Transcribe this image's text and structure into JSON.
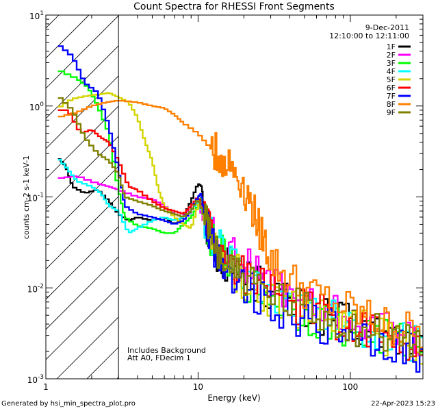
{
  "footer": {
    "left": "Generated by hsi_min_spectra_plot.pro",
    "right": "22-Apr-2023 15:23"
  },
  "chart_data": {
    "type": "line",
    "title": "Count Spectra for RHESSI Front Segments",
    "xlabel": "Energy (keV)",
    "ylabel": "counts cm-2 s-1 keV-1",
    "xscale": "log",
    "yscale": "log",
    "xlim": [
      1,
      300
    ],
    "ylim": [
      0.001,
      10
    ],
    "x_tick_labels": [
      "1",
      "10",
      "100"
    ],
    "y_tick_labels": [
      {
        "base": "10",
        "exp": "-3"
      },
      {
        "base": "10",
        "exp": "-2"
      },
      {
        "base": "10",
        "exp": "-1"
      },
      {
        "base": "10",
        "exp": "0"
      },
      {
        "base": "10",
        "exp": "1"
      }
    ],
    "header_lines": [
      "9-Dec-2011",
      "12:10:00 to 12:11:00"
    ],
    "annotation": [
      "Includes Background",
      "Att A0, FDecim 1"
    ],
    "shaded_region": {
      "x_from": 1,
      "x_to": 3
    },
    "series": [
      {
        "name": "1F",
        "color": "#000000",
        "points": [
          [
            1.2,
            0.27
          ],
          [
            1.35,
            0.22
          ],
          [
            1.5,
            0.13
          ],
          [
            1.8,
            0.11
          ],
          [
            2.2,
            0.12
          ],
          [
            2.6,
            0.09
          ],
          [
            3.0,
            0.065
          ],
          [
            3.5,
            0.055
          ],
          [
            4.0,
            0.06
          ],
          [
            5,
            0.055
          ],
          [
            6,
            0.06
          ],
          [
            7,
            0.05
          ],
          [
            8,
            0.06
          ],
          [
            9,
            0.09
          ],
          [
            10,
            0.14
          ],
          [
            10.6,
            0.13
          ],
          [
            11,
            0.06
          ],
          [
            12,
            0.035
          ],
          [
            13,
            0.025
          ],
          [
            15,
            0.02
          ],
          [
            20,
            0.014
          ],
          [
            30,
            0.009
          ],
          [
            50,
            0.0055
          ],
          [
            80,
            0.0045
          ],
          [
            120,
            0.0035
          ],
          [
            200,
            0.0028
          ],
          [
            300,
            0.0022
          ]
        ]
      },
      {
        "name": "2F",
        "color": "#ff00ff",
        "points": [
          [
            1.2,
            0.16
          ],
          [
            1.6,
            0.17
          ],
          [
            2.2,
            0.14
          ],
          [
            2.6,
            0.13
          ],
          [
            3.0,
            0.12
          ],
          [
            4,
            0.1
          ],
          [
            5,
            0.095
          ],
          [
            6,
            0.08
          ],
          [
            7,
            0.065
          ],
          [
            8,
            0.06
          ],
          [
            9,
            0.08
          ],
          [
            10,
            0.09
          ],
          [
            11,
            0.05
          ],
          [
            12,
            0.04
          ],
          [
            14,
            0.03
          ],
          [
            18,
            0.02
          ],
          [
            25,
            0.014
          ],
          [
            40,
            0.009
          ],
          [
            60,
            0.006
          ],
          [
            100,
            0.0045
          ],
          [
            180,
            0.0033
          ],
          [
            300,
            0.0028
          ]
        ]
      },
      {
        "name": "3F",
        "color": "#00ff00",
        "points": [
          [
            1.2,
            2.5
          ],
          [
            1.6,
            2.0
          ],
          [
            1.9,
            1.6
          ],
          [
            2.2,
            1.0
          ],
          [
            2.6,
            0.5
          ],
          [
            3.0,
            0.12
          ],
          [
            3.3,
            0.06
          ],
          [
            4,
            0.048
          ],
          [
            5,
            0.045
          ],
          [
            6,
            0.04
          ],
          [
            7,
            0.04
          ],
          [
            8,
            0.05
          ],
          [
            9,
            0.06
          ],
          [
            10,
            0.08
          ],
          [
            10.5,
            0.1
          ],
          [
            11,
            0.06
          ],
          [
            12,
            0.04
          ],
          [
            15,
            0.02
          ],
          [
            20,
            0.012
          ],
          [
            30,
            0.008
          ],
          [
            50,
            0.005
          ],
          [
            80,
            0.004
          ],
          [
            120,
            0.0033
          ],
          [
            200,
            0.0026
          ],
          [
            300,
            0.0022
          ]
        ]
      },
      {
        "name": "4F",
        "color": "#00ffff",
        "points": [
          [
            1.2,
            0.27
          ],
          [
            1.4,
            0.2
          ],
          [
            1.6,
            0.15
          ],
          [
            2.0,
            0.13
          ],
          [
            2.3,
            0.11
          ],
          [
            2.6,
            0.08
          ],
          [
            3.0,
            0.07
          ],
          [
            3.5,
            0.04
          ],
          [
            4,
            0.045
          ],
          [
            5,
            0.055
          ],
          [
            6,
            0.06
          ],
          [
            7,
            0.055
          ],
          [
            8,
            0.06
          ],
          [
            9,
            0.07
          ],
          [
            10,
            0.09
          ],
          [
            11,
            0.06
          ],
          [
            12,
            0.04
          ],
          [
            15,
            0.022
          ],
          [
            20,
            0.014
          ],
          [
            30,
            0.009
          ],
          [
            50,
            0.006
          ],
          [
            80,
            0.0045
          ],
          [
            120,
            0.0035
          ],
          [
            200,
            0.0028
          ],
          [
            300,
            0.0023
          ]
        ]
      },
      {
        "name": "5F",
        "color": "#d4d400",
        "points": [
          [
            1.2,
            0.95
          ],
          [
            1.5,
            1.2
          ],
          [
            1.9,
            1.3
          ],
          [
            2.3,
            1.35
          ],
          [
            2.6,
            1.4
          ],
          [
            3.0,
            1.25
          ],
          [
            3.5,
            1.1
          ],
          [
            4.0,
            0.75
          ],
          [
            4.5,
            0.4
          ],
          [
            5.0,
            0.25
          ],
          [
            5.5,
            0.12
          ],
          [
            6,
            0.08
          ],
          [
            7,
            0.06
          ],
          [
            8,
            0.05
          ],
          [
            9,
            0.045
          ],
          [
            10,
            0.08
          ],
          [
            10.5,
            0.09
          ],
          [
            11,
            0.05
          ],
          [
            12,
            0.035
          ],
          [
            15,
            0.02
          ],
          [
            20,
            0.012
          ],
          [
            30,
            0.008
          ],
          [
            50,
            0.0055
          ],
          [
            80,
            0.0042
          ],
          [
            120,
            0.0035
          ],
          [
            200,
            0.0028
          ],
          [
            300,
            0.0024
          ]
        ]
      },
      {
        "name": "6F",
        "color": "#ff0000",
        "points": [
          [
            1.2,
            0.9
          ],
          [
            1.4,
            0.9
          ],
          [
            1.7,
            0.5
          ],
          [
            2.0,
            0.55
          ],
          [
            2.3,
            0.45
          ],
          [
            2.6,
            0.4
          ],
          [
            3.0,
            0.25
          ],
          [
            3.5,
            0.13
          ],
          [
            4,
            0.12
          ],
          [
            5,
            0.09
          ],
          [
            6,
            0.075
          ],
          [
            7,
            0.07
          ],
          [
            8,
            0.065
          ],
          [
            9,
            0.08
          ],
          [
            10,
            0.1
          ],
          [
            11,
            0.07
          ],
          [
            12,
            0.045
          ],
          [
            15,
            0.022
          ],
          [
            20,
            0.014
          ],
          [
            30,
            0.009
          ],
          [
            50,
            0.006
          ],
          [
            80,
            0.0045
          ],
          [
            120,
            0.0036
          ],
          [
            200,
            0.0029
          ],
          [
            300,
            0.0024
          ]
        ]
      },
      {
        "name": "7F",
        "color": "#0000ff",
        "points": [
          [
            1.2,
            4.8
          ],
          [
            1.5,
            3.5
          ],
          [
            1.8,
            1.8
          ],
          [
            2.2,
            1.4
          ],
          [
            2.6,
            0.6
          ],
          [
            3.0,
            0.2
          ],
          [
            3.3,
            0.08
          ],
          [
            4,
            0.065
          ],
          [
            5,
            0.06
          ],
          [
            6,
            0.055
          ],
          [
            7,
            0.05
          ],
          [
            8,
            0.055
          ],
          [
            9,
            0.07
          ],
          [
            10,
            0.1
          ],
          [
            10.5,
            0.11
          ],
          [
            11,
            0.06
          ],
          [
            12,
            0.035
          ],
          [
            15,
            0.018
          ],
          [
            20,
            0.011
          ],
          [
            30,
            0.007
          ],
          [
            50,
            0.0045
          ],
          [
            80,
            0.0035
          ],
          [
            120,
            0.003
          ],
          [
            200,
            0.0024
          ],
          [
            300,
            0.0018
          ]
        ]
      },
      {
        "name": "8F",
        "color": "#ff8000",
        "points": [
          [
            1.2,
            0.75
          ],
          [
            1.6,
            0.85
          ],
          [
            2.0,
            1.0
          ],
          [
            2.5,
            1.1
          ],
          [
            3.0,
            1.15
          ],
          [
            4,
            1.1
          ],
          [
            5,
            1.0
          ],
          [
            6,
            0.95
          ],
          [
            7,
            0.8
          ],
          [
            8,
            0.65
          ],
          [
            10,
            0.5
          ],
          [
            12,
            0.35
          ],
          [
            14,
            0.27
          ],
          [
            17,
            0.2
          ],
          [
            20,
            0.13
          ],
          [
            23,
            0.07
          ],
          [
            26,
            0.04
          ],
          [
            30,
            0.02
          ],
          [
            40,
            0.012
          ],
          [
            60,
            0.008
          ],
          [
            100,
            0.0055
          ],
          [
            150,
            0.0042
          ],
          [
            200,
            0.0035
          ],
          [
            300,
            0.003
          ]
        ]
      },
      {
        "name": "9F",
        "color": "#808000",
        "points": [
          [
            1.2,
            1.3
          ],
          [
            1.5,
            0.9
          ],
          [
            1.8,
            0.45
          ],
          [
            2.2,
            0.3
          ],
          [
            2.6,
            0.25
          ],
          [
            3.0,
            0.18
          ],
          [
            3.3,
            0.1
          ],
          [
            4,
            0.09
          ],
          [
            5,
            0.08
          ],
          [
            6,
            0.07
          ],
          [
            7,
            0.065
          ],
          [
            8,
            0.06
          ],
          [
            9,
            0.07
          ],
          [
            10,
            0.095
          ],
          [
            11,
            0.06
          ],
          [
            12,
            0.04
          ],
          [
            15,
            0.02
          ],
          [
            20,
            0.013
          ],
          [
            30,
            0.008
          ],
          [
            50,
            0.0055
          ],
          [
            80,
            0.0042
          ],
          [
            120,
            0.0034
          ],
          [
            200,
            0.0028
          ],
          [
            300,
            0.0023
          ]
        ]
      }
    ]
  }
}
